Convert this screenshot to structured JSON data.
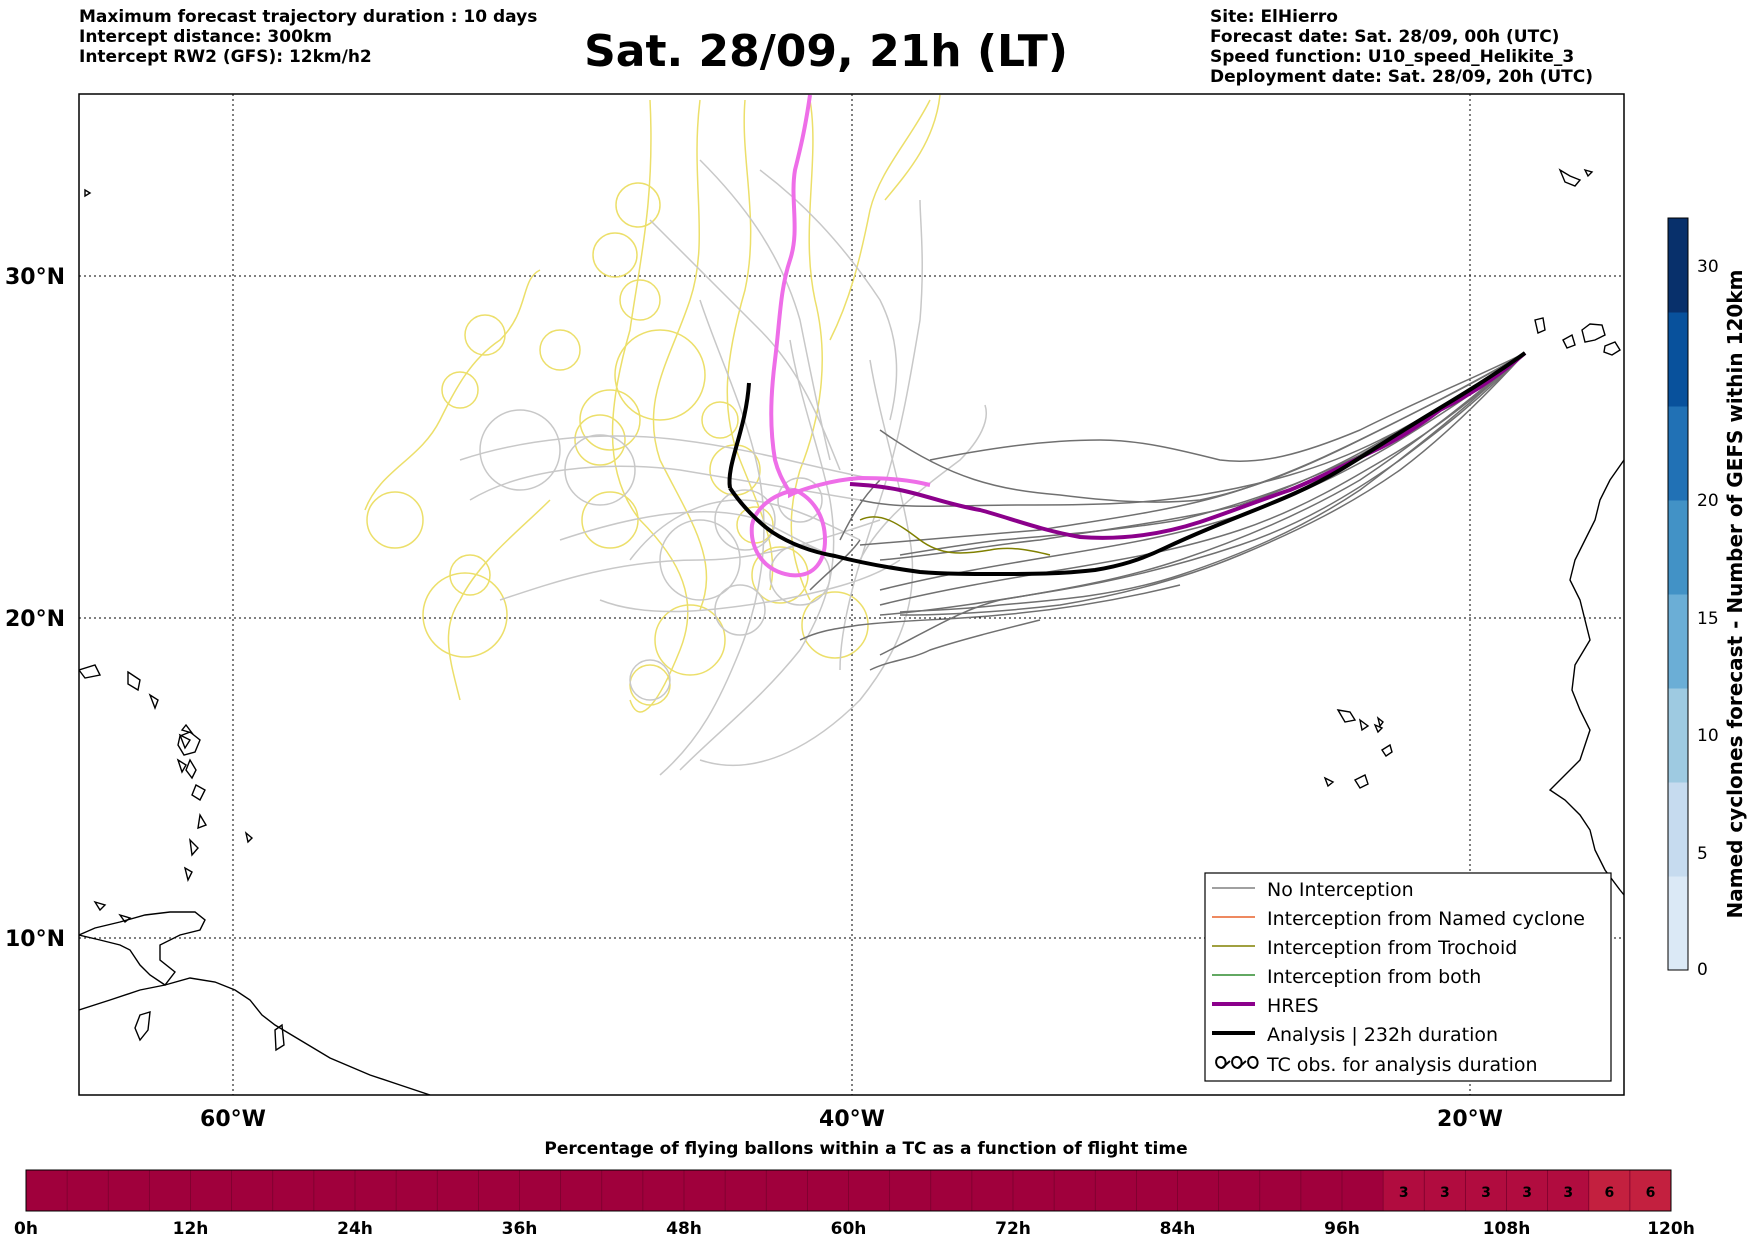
{
  "header": {
    "left": [
      "Maximum forecast trajectory duration : 10 days",
      "Intercept distance: 300km",
      "Intercept RW2 (GFS):  12km/h2"
    ],
    "title": "Sat. 28/09, 21h (LT)",
    "right": [
      "Site: ElHierro",
      "Forecast date: Sat. 28/09, 00h (UTC)",
      "Speed function: U10_speed_Helikite_3",
      "Deployment date: Sat. 28/09, 20h (UTC)"
    ]
  },
  "map": {
    "lat_labels": [
      "30°N",
      "20°N",
      "10°N"
    ],
    "lon_labels": [
      "60°W",
      "40°W",
      "20°W"
    ],
    "legend": [
      {
        "label": "No Interception",
        "color": "#808080",
        "icon": "line"
      },
      {
        "label": "Interception from Named cyclone",
        "color": "#e8622c",
        "icon": "line"
      },
      {
        "label": "Interception from Trochoid",
        "color": "#808000",
        "icon": "line"
      },
      {
        "label": "Interception from both",
        "color": "#2e8b2e",
        "icon": "line"
      },
      {
        "label": "HRES",
        "color": "#8b008b",
        "icon": "thick-line"
      },
      {
        "label": "Analysis | 232h duration",
        "color": "#000000",
        "icon": "thick-line"
      },
      {
        "label": "TC obs. for analysis duration",
        "color": "#000000",
        "icon": "loops-icon"
      }
    ]
  },
  "colorbar": {
    "label": "Named cyclones forecast - Number of GEFS within 120km",
    "ticks": [
      "0",
      "5",
      "10",
      "15",
      "20",
      "30"
    ],
    "colors": [
      "#dbe9f6",
      "#c6dbef",
      "#9ecae1",
      "#6baed6",
      "#4292c6",
      "#2171b5",
      "#08519c",
      "#08306b"
    ]
  },
  "timeline": {
    "title": "Percentage of flying ballons within a TC as a function of flight time",
    "ticks": [
      "0h",
      "12h",
      "24h",
      "36h",
      "48h",
      "60h",
      "72h",
      "84h",
      "96h",
      "108h",
      "120h"
    ],
    "base_color": "#a0003c",
    "cells": [
      {
        "value": "3",
        "color": "#b10c3f"
      },
      {
        "value": "3",
        "color": "#b10c3f"
      },
      {
        "value": "3",
        "color": "#b10c3f"
      },
      {
        "value": "3",
        "color": "#b10c3f"
      },
      {
        "value": "3",
        "color": "#b10c3f"
      },
      {
        "value": "6",
        "color": "#c3203f"
      },
      {
        "value": "6",
        "color": "#c3203f"
      }
    ]
  }
}
